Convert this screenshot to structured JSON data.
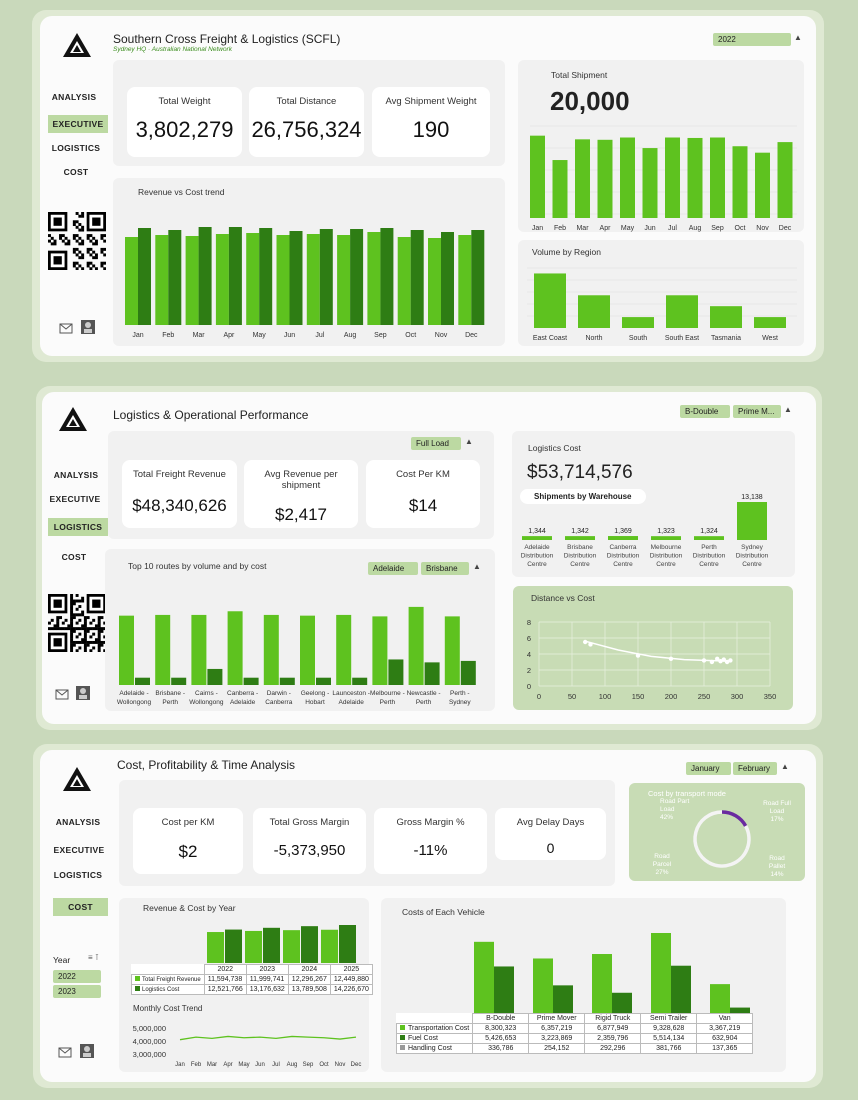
{
  "colors": {
    "light": "#5ec21f",
    "dark": "#2e7d14",
    "slicer": "#bcd9a2",
    "purple": "#6a2aa0"
  },
  "nav": {
    "analysis": "ANALYSIS",
    "executive": "EXECUTIVE",
    "logistics": "LOGISTICS",
    "cost": "COST"
  },
  "exec": {
    "title": "Southern Cross Freight & Logistics (SCFL)",
    "subtitle": "Sydney HQ · Australian National Network",
    "year_slicer": "2022",
    "kpis": [
      {
        "label": "Total Weight",
        "value": "3,802,279"
      },
      {
        "label": "Total Distance",
        "value": "26,756,324"
      },
      {
        "label": "Avg Shipment Weight",
        "value": "190"
      }
    ],
    "total_shipment": {
      "label": "Total Shipment",
      "value": "20,000"
    },
    "revcost_title": "Revenue vs Cost trend",
    "volume_title": "Volume by Region"
  },
  "logistics": {
    "title": "Logistics & Operational Performance",
    "slicers": [
      "B-Double",
      "Prime M..."
    ],
    "load_slicer": "Full Load",
    "kpis": [
      {
        "label": "Total Freight Revenue",
        "value": "$48,340,626"
      },
      {
        "label": "Avg Revenue per shipment",
        "value": "$2,417"
      },
      {
        "label": "Cost Per KM",
        "value": "$14"
      }
    ],
    "cost_label": "Logistics Cost",
    "cost_value": "$53,714,576",
    "warehouse_title": "Shipments by Warehouse",
    "routes_title": "Top 10 routes by volume and by cost",
    "route_slicers": [
      "Adelaide",
      "Brisbane"
    ],
    "distcost_title": "Distance vs Cost"
  },
  "cost": {
    "title": "Cost, Profitability & Time Analysis",
    "month_slicers": [
      "January",
      "February"
    ],
    "kpis": [
      {
        "label": "Cost per KM",
        "value": "$2"
      },
      {
        "label": "Total Gross Margin",
        "value": "-5,373,950"
      },
      {
        "label": "Gross Margin %",
        "value": "-11%"
      },
      {
        "label": "Avg Delay Days",
        "value": "0"
      }
    ],
    "transport_title": "Cost by transport mode",
    "year_filter": {
      "label": "Year",
      "options": [
        "2022",
        "2023"
      ]
    },
    "revcost_year_title": "Revenue & Cost by Year",
    "monthly_title": "Monthly Cost Trend",
    "vehicle_title": "Costs of Each Vehicle"
  },
  "chart_data": [
    {
      "type": "bar",
      "title": "Total Shipment",
      "categories": [
        "Jan",
        "Feb",
        "Mar",
        "Apr",
        "May",
        "Jun",
        "Jul",
        "Aug",
        "Sep",
        "Oct",
        "Nov",
        "Dec"
      ],
      "values": [
        1790,
        1260,
        1710,
        1700,
        1750,
        1520,
        1750,
        1740,
        1750,
        1560,
        1420,
        1650
      ]
    },
    {
      "type": "bar",
      "title": "Revenue vs Cost trend",
      "categories": [
        "Jan",
        "Feb",
        "Mar",
        "Apr",
        "May",
        "Jun",
        "Jul",
        "Aug",
        "Sep",
        "Oct",
        "Nov",
        "Dec"
      ],
      "series": [
        {
          "values": [
            88,
            90,
            89,
            91,
            92,
            90,
            91,
            90,
            93,
            88,
            87,
            90
          ]
        },
        {
          "values": [
            97,
            95,
            98,
            98,
            97,
            94,
            96,
            96,
            97,
            95,
            93,
            95
          ]
        }
      ]
    },
    {
      "type": "bar",
      "title": "Volume by Region",
      "categories": [
        "East Coast",
        "North",
        "South",
        "South East",
        "Tasmania",
        "West"
      ],
      "values": [
        5000,
        3000,
        1000,
        3000,
        2000,
        1000
      ]
    },
    {
      "type": "bar",
      "title": "Shipments by Warehouse",
      "categories": [
        "Adelaide Distribution Centre",
        "Brisbane Distribution Centre",
        "Canberra Distribution Centre",
        "Melbourne Distribution Centre",
        "Perth Distribution Centre",
        "Sydney Distribution Centre"
      ],
      "values": [
        1344,
        1342,
        1369,
        1323,
        1324,
        13138
      ],
      "labels": [
        "1,344",
        "1,342",
        "1,369",
        "1,323",
        "1,324",
        "13,138"
      ]
    },
    {
      "type": "bar",
      "title": "Top 10 routes by volume and by cost",
      "categories": [
        "Adelaide - Wollongong",
        "Brisbane - Perth",
        "Cairns - Wollongong",
        "Canberra - Adelaide",
        "Darwin - Canberra",
        "Geelong - Hobart",
        "Launceston - Adelaide",
        "Melbourne - Perth",
        "Newcastle - Perth",
        "Perth - Sydney"
      ],
      "series": [
        {
          "values": [
            95,
            96,
            96,
            101,
            96,
            95,
            96,
            94,
            107,
            94
          ]
        },
        {
          "values": [
            10,
            10,
            22,
            10,
            10,
            10,
            10,
            35,
            31,
            33
          ]
        }
      ]
    },
    {
      "type": "scatter",
      "title": "Distance vs Cost",
      "xlim": [
        0,
        350
      ],
      "ylim": [
        0,
        8
      ],
      "xticks": [
        0,
        50,
        100,
        150,
        200,
        250,
        300,
        350
      ],
      "yticks": [
        0,
        2,
        4,
        6,
        8
      ],
      "points": [
        [
          70,
          5.5
        ],
        [
          78,
          5.2
        ],
        [
          150,
          3.8
        ],
        [
          200,
          3.4
        ],
        [
          250,
          3.2
        ],
        [
          262,
          3.0
        ],
        [
          270,
          3.4
        ],
        [
          275,
          3.1
        ],
        [
          280,
          3.3
        ],
        [
          285,
          3.0
        ],
        [
          290,
          3.2
        ]
      ],
      "trend": [
        [
          70,
          5.6
        ],
        [
          120,
          4.5
        ],
        [
          170,
          3.7
        ],
        [
          220,
          3.3
        ],
        [
          290,
          3.1
        ]
      ]
    },
    {
      "type": "pie",
      "title": "Cost by transport mode",
      "categories": [
        "Road Part Load",
        "Road Full Load",
        "Road Pallet",
        "Road Parcel"
      ],
      "labels": [
        "Road Part Load 42%",
        "Road Full Load 17%",
        "Road Pallet 14%",
        "Road Parcel 27%"
      ],
      "values": [
        42,
        17,
        14,
        27
      ]
    },
    {
      "type": "bar",
      "title": "Revenue & Cost by Year",
      "categories": [
        "2022",
        "2023",
        "2024",
        "2025"
      ],
      "series": [
        {
          "name": "Total Freight Revenue",
          "values": [
            11594738,
            11999741,
            12296267,
            12449880
          ]
        },
        {
          "name": "Logistics Cost",
          "values": [
            12521766,
            13176632,
            13789508,
            14226670
          ]
        }
      ],
      "table": [
        [
          "Total Freight Revenue",
          "11,594,738",
          "11,999,741",
          "12,296,267",
          "12,449,880"
        ],
        [
          "Logistics Cost",
          "12,521,766",
          "13,176,632",
          "13,789,508",
          "14,226,670"
        ]
      ]
    },
    {
      "type": "line",
      "title": "Monthly Cost Trend",
      "categories": [
        "Jan",
        "Feb",
        "Mar",
        "Apr",
        "May",
        "Jun",
        "Jul",
        "Aug",
        "Sep",
        "Oct",
        "Nov",
        "Dec"
      ],
      "yticks": [
        "5,000,000",
        "4,000,000",
        "3,000,000"
      ],
      "ylim": [
        3000000,
        5000000
      ],
      "values": [
        4100000,
        4300000,
        4200000,
        4350000,
        4250000,
        4300000,
        4200000,
        4350000,
        4300000,
        4250000,
        4150000,
        4300000
      ]
    },
    {
      "type": "bar",
      "title": "Costs of Each Vehicle",
      "categories": [
        "B-Double",
        "Prime Mover",
        "Rigid Truck",
        "Semi Trailer",
        "Van"
      ],
      "series": [
        {
          "name": "Transportation Cost",
          "values": [
            8300323,
            6357219,
            6877949,
            9328628,
            3367219
          ]
        },
        {
          "name": "Fuel Cost",
          "values": [
            5426653,
            3223869,
            2359796,
            5514134,
            632904
          ]
        },
        {
          "name": "Handling Cost",
          "values": [
            336786,
            254152,
            292296,
            381766,
            137365
          ]
        }
      ],
      "table": [
        [
          "Transportation Cost",
          "8,300,323",
          "6,357,219",
          "6,877,949",
          "9,328,628",
          "3,367,219"
        ],
        [
          "Fuel Cost",
          "5,426,653",
          "3,223,869",
          "2,359,796",
          "5,514,134",
          "632,904"
        ],
        [
          "Handling Cost",
          "336,786",
          "254,152",
          "292,296",
          "381,766",
          "137,365"
        ]
      ]
    }
  ]
}
